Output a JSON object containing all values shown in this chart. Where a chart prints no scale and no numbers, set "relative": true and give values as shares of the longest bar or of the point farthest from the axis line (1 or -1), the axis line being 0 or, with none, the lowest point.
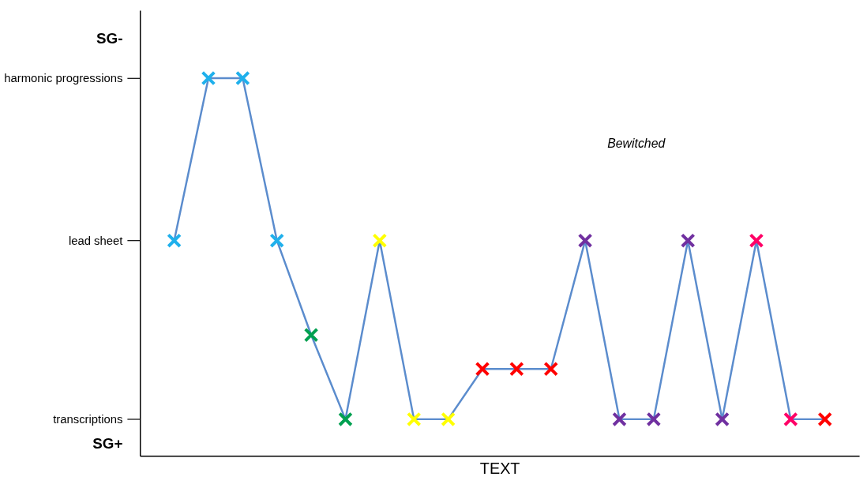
{
  "chart_data": {
    "type": "line",
    "xlabel": "TEXT",
    "relative": true,
    "categories": [
      null,
      null,
      null,
      null,
      null,
      null,
      null,
      null,
      null,
      null,
      null,
      null,
      null,
      null,
      null,
      null,
      null,
      null,
      null,
      null
    ],
    "series": [
      {
        "color": "#5b8ccd",
        "values": [
          0.57,
          1,
          1,
          0.57,
          0.32,
          0.097,
          0.57,
          0.097,
          0.097,
          0.23,
          0.23,
          0.23,
          0.57,
          0.097,
          0.097,
          0.57,
          0.097,
          0.57,
          0.097,
          0.097
        ],
        "colors": [
          "#1fb0ec",
          "#1fb0ec",
          "#1fb0ec",
          "#1fb0ec",
          "#00a050",
          "#00a050",
          "#ffff00",
          "#ffff00",
          "#ffff00",
          "#ff0000",
          "#ff0000",
          "#ff0000",
          "#7030a0",
          "#7030a0",
          "#7030a0",
          "#7030a0",
          "#7030a0",
          "#ff0066",
          "#ff0066",
          "#ff0000"
        ]
      }
    ],
    "annotations": [
      "SG-",
      "harmonic progressions",
      "lead sheet",
      "transcriptions",
      "SG+",
      "Bewitched"
    ],
    "marker": "cross",
    "line_style": "solid",
    "grid": false
  }
}
